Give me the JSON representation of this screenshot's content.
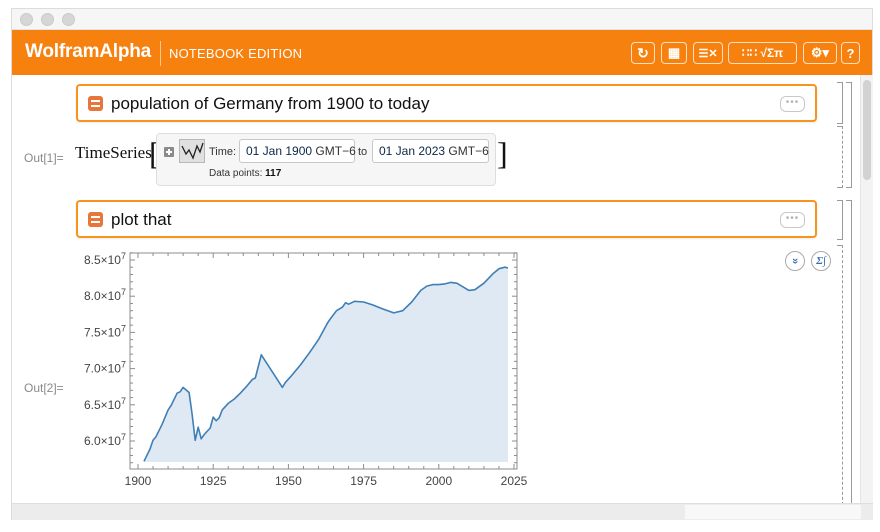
{
  "window": {
    "traffic_lights": [
      "close",
      "minimize",
      "zoom"
    ]
  },
  "appbar": {
    "brand": "WolframAlpha",
    "edition": "NOTEBOOK EDITION",
    "accent_color": "#f6810f",
    "toolbar": [
      {
        "name": "spiral-icon",
        "glyph": "෩"
      },
      {
        "name": "grid-icon",
        "glyph": "▦"
      },
      {
        "name": "checklist-icon",
        "glyph": "☰✕"
      },
      {
        "name": "math-input-icon",
        "glyph": "∷∷ √Σπ"
      },
      {
        "name": "gear-icon",
        "glyph": "⚙▾"
      },
      {
        "name": "help-icon",
        "glyph": "?"
      }
    ]
  },
  "cells": [
    {
      "type": "input",
      "text": "population of Germany from 1900 to today",
      "more": "•••"
    },
    {
      "type": "output",
      "label": "Out[1]=",
      "head": "TimeSeries",
      "open_bracket": "[",
      "close_bracket": "]",
      "time_label": "Time:",
      "from_date": "01 Jan 1900",
      "from_tz": "GMT−6",
      "to_label": "to",
      "to_date": "01 Jan 2023",
      "to_tz": "GMT−6",
      "points_label": "Data points:",
      "points_value": "117"
    },
    {
      "type": "input",
      "text": "plot that",
      "more": "•••"
    },
    {
      "type": "output",
      "label": "Out[2]=",
      "side_icons": [
        {
          "name": "expand-icon",
          "glyph": "»"
        },
        {
          "name": "sigma-integral-icon",
          "glyph": "Σ∫"
        }
      ]
    }
  ],
  "chart_data": {
    "type": "area",
    "title": "",
    "xlabel": "",
    "ylabel": "",
    "x_ticks": [
      1900,
      1925,
      1950,
      1975,
      2000,
      2025
    ],
    "y_ticks": [
      60000000,
      65000000,
      70000000,
      75000000,
      80000000,
      85000000
    ],
    "y_tick_labels": [
      "6.0×10^7",
      "6.5×10^7",
      "7.0×10^7",
      "7.5×10^7",
      "8.0×10^7",
      "8.5×10^7"
    ],
    "xlim": [
      1897,
      2026
    ],
    "ylim": [
      56200000,
      86200000
    ],
    "grid": false,
    "legend": null,
    "line_color": "#3f7fb5",
    "fill_color": "#dfe9f3",
    "series": [
      {
        "name": "Population of Germany",
        "x": [
          1902,
          1904,
          1905,
          1906,
          1908,
          1910,
          1911,
          1913,
          1914,
          1915,
          1917,
          1918,
          1919,
          1920,
          1921,
          1922,
          1924,
          1925,
          1926,
          1927,
          1928,
          1930,
          1932,
          1934,
          1936,
          1938,
          1939,
          1941,
          1948,
          1949,
          1951,
          1954,
          1957,
          1960,
          1963,
          1964,
          1966,
          1968,
          1969,
          1970,
          1972,
          1975,
          1978,
          1981,
          1985,
          1988,
          1991,
          1994,
          1996,
          1998,
          2000,
          2002,
          2004,
          2006,
          2008,
          2010,
          2012,
          2015,
          2018,
          2020,
          2022,
          2023
        ],
        "values": [
          57200000,
          58900000,
          60100000,
          60600000,
          62300000,
          64300000,
          64900000,
          66600000,
          66800000,
          67400000,
          66700000,
          63700000,
          60100000,
          61900000,
          60300000,
          60900000,
          61800000,
          63300000,
          62800000,
          63200000,
          64300000,
          65200000,
          65800000,
          66600000,
          67500000,
          68500000,
          68700000,
          71900000,
          67400000,
          68100000,
          69000000,
          70500000,
          72200000,
          74000000,
          76300000,
          76900000,
          78000000,
          78500000,
          79100000,
          78900000,
          79300000,
          79200000,
          78800000,
          78300000,
          77700000,
          78000000,
          79200000,
          80800000,
          81400000,
          81600000,
          81600000,
          81700000,
          81900000,
          81800000,
          81300000,
          80800000,
          80900000,
          81800000,
          83100000,
          83800000,
          84000000,
          83900000
        ]
      }
    ]
  },
  "scrollbars": {
    "vertical": "visible",
    "horizontal": "visible"
  }
}
